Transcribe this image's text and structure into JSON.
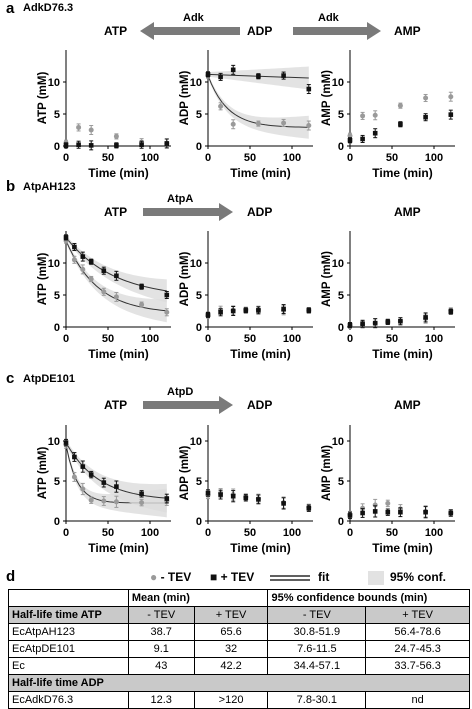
{
  "panels": [
    {
      "label": "a",
      "title": "AdkD76.3"
    },
    {
      "label": "b",
      "title": "AtpAH123"
    },
    {
      "label": "c",
      "title": "AtpDE101"
    },
    {
      "label": "d",
      "title": ""
    }
  ],
  "headers": {
    "a": {
      "atp": "ATP",
      "adp": "ADP",
      "amp": "AMP",
      "enzyme_left": "Adk",
      "enzyme_right": "Adk"
    },
    "b": {
      "atp": "ATP",
      "adp": "ADP",
      "amp": "AMP",
      "enzyme": "AtpA"
    },
    "c": {
      "atp": "ATP",
      "adp": "ADP",
      "amp": "AMP",
      "enzyme": "AtpD"
    }
  },
  "colors": {
    "minus_tev": "#9a9a9a",
    "plus_tev": "#111111",
    "conf_band": "#dcdcdc"
  },
  "legend": {
    "minus": "- TEV",
    "plus": "+ TEV",
    "fit": "fit",
    "conf": "95% conf."
  },
  "chart_data": [
    {
      "panel": "a",
      "type": "scatter",
      "title": "",
      "xlabel": "Time (min)",
      "ylabel": "ATP (mM)",
      "xlim": [
        0,
        125
      ],
      "ylim": [
        0,
        15
      ],
      "xticks": [
        0,
        50,
        100
      ],
      "yticks": [
        0,
        5,
        10
      ],
      "fit": false,
      "series": [
        {
          "name": "- TEV",
          "x": [
            0,
            15,
            30,
            60,
            90,
            120
          ],
          "y": [
            0.5,
            2.9,
            2.5,
            1.5,
            0.6,
            0.4
          ]
        },
        {
          "name": "+ TEV",
          "x": [
            0,
            15,
            30,
            60,
            90,
            120
          ],
          "y": [
            0.1,
            0.2,
            0.1,
            0.1,
            0.2,
            0.4
          ]
        }
      ]
    },
    {
      "panel": "a",
      "type": "scatter",
      "title": "",
      "xlabel": "Time (min)",
      "ylabel": "ADP (mM)",
      "xlim": [
        0,
        125
      ],
      "ylim": [
        0,
        15
      ],
      "xticks": [
        0,
        50,
        100
      ],
      "yticks": [
        0,
        5,
        10
      ],
      "fit": true,
      "series": [
        {
          "name": "- TEV",
          "x": [
            0,
            15,
            30,
            60,
            90,
            120
          ],
          "y": [
            11.0,
            6.2,
            3.4,
            3.5,
            3.6,
            3.2
          ]
        },
        {
          "name": "+ TEV",
          "x": [
            0,
            15,
            30,
            60,
            90,
            120
          ],
          "y": [
            11.2,
            10.8,
            11.9,
            10.9,
            11.0,
            8.9
          ]
        }
      ]
    },
    {
      "panel": "a",
      "type": "scatter",
      "title": "",
      "xlabel": "Time (min)",
      "ylabel": "AMP (mM)",
      "xlim": [
        0,
        125
      ],
      "ylim": [
        0,
        15
      ],
      "xticks": [
        0,
        50,
        100
      ],
      "yticks": [
        0,
        5,
        10
      ],
      "fit": false,
      "series": [
        {
          "name": "- TEV",
          "x": [
            0,
            15,
            30,
            60,
            90,
            120
          ],
          "y": [
            1.6,
            4.7,
            4.8,
            6.3,
            7.5,
            7.7
          ]
        },
        {
          "name": "+ TEV",
          "x": [
            0,
            15,
            30,
            60,
            90,
            120
          ],
          "y": [
            0.9,
            1.1,
            2.0,
            3.4,
            4.5,
            4.9
          ]
        }
      ]
    },
    {
      "panel": "b",
      "type": "scatter",
      "title": "",
      "xlabel": "Time (min)",
      "ylabel": "ATP (mM)",
      "xlim": [
        0,
        125
      ],
      "ylim": [
        0,
        15
      ],
      "xticks": [
        0,
        50,
        100
      ],
      "yticks": [
        0,
        5,
        10
      ],
      "fit": true,
      "series": [
        {
          "name": "- TEV",
          "x": [
            0,
            10,
            20,
            30,
            45,
            60,
            90,
            120
          ],
          "y": [
            13.5,
            10.5,
            9.0,
            7.5,
            5.5,
            4.7,
            3.5,
            2.3
          ]
        },
        {
          "name": "+ TEV",
          "x": [
            0,
            10,
            20,
            30,
            45,
            60,
            90,
            120
          ],
          "y": [
            14.0,
            12.5,
            11.0,
            10.2,
            8.8,
            8.0,
            6.3,
            5.0
          ]
        }
      ]
    },
    {
      "panel": "b",
      "type": "scatter",
      "title": "",
      "xlabel": "Time (min)",
      "ylabel": "ADP (mM)",
      "xlim": [
        0,
        125
      ],
      "ylim": [
        0,
        15
      ],
      "xticks": [
        0,
        50,
        100
      ],
      "yticks": [
        0,
        5,
        10
      ],
      "fit": false,
      "series": [
        {
          "name": "- TEV",
          "x": [
            0,
            15,
            30,
            45,
            60,
            90,
            120
          ],
          "y": [
            1.8,
            2.7,
            2.6,
            2.7,
            2.7,
            2.6,
            2.6
          ]
        },
        {
          "name": "+ TEV",
          "x": [
            0,
            15,
            30,
            45,
            60,
            90,
            120
          ],
          "y": [
            1.9,
            2.3,
            2.5,
            2.6,
            2.6,
            2.8,
            2.6
          ]
        }
      ]
    },
    {
      "panel": "b",
      "type": "scatter",
      "title": "",
      "xlabel": "Time (min)",
      "ylabel": "AMP (mM)",
      "xlim": [
        0,
        125
      ],
      "ylim": [
        0,
        15
      ],
      "xticks": [
        0,
        50,
        100
      ],
      "yticks": [
        0,
        5,
        10
      ],
      "fit": false,
      "series": [
        {
          "name": "- TEV",
          "x": [
            0,
            15,
            30,
            45,
            60,
            90,
            120
          ],
          "y": [
            0.2,
            0.4,
            0.6,
            0.8,
            0.9,
            1.3,
            2.6
          ]
        },
        {
          "name": "+ TEV",
          "x": [
            0,
            15,
            30,
            45,
            60,
            90,
            120
          ],
          "y": [
            0.3,
            0.5,
            0.6,
            0.8,
            0.9,
            1.5,
            2.4
          ]
        }
      ]
    },
    {
      "panel": "c",
      "type": "scatter",
      "title": "",
      "xlabel": "Time (min)",
      "ylabel": "ATP (mM)",
      "xlim": [
        0,
        125
      ],
      "ylim": [
        0,
        12
      ],
      "xticks": [
        0,
        50,
        100
      ],
      "yticks": [
        0,
        5,
        10
      ],
      "fit": true,
      "series": [
        {
          "name": "- TEV",
          "x": [
            0,
            10,
            20,
            30,
            45,
            60,
            90,
            120
          ],
          "y": [
            9.5,
            5.5,
            4.0,
            2.6,
            2.5,
            2.4,
            2.3,
            2.5
          ]
        },
        {
          "name": "+ TEV",
          "x": [
            0,
            10,
            20,
            30,
            45,
            60,
            90,
            120
          ],
          "y": [
            9.8,
            8.0,
            6.8,
            5.8,
            4.8,
            4.3,
            3.4,
            2.8
          ]
        }
      ]
    },
    {
      "panel": "c",
      "type": "scatter",
      "title": "",
      "xlabel": "Time (min)",
      "ylabel": "ADP (mM)",
      "xlim": [
        0,
        125
      ],
      "ylim": [
        0,
        12
      ],
      "xticks": [
        0,
        50,
        100
      ],
      "yticks": [
        0,
        5,
        10
      ],
      "fit": false,
      "series": [
        {
          "name": "- TEV",
          "x": [
            0,
            15,
            30,
            45,
            60,
            90,
            120
          ],
          "y": [
            3.2,
            3.5,
            3.3,
            3.0,
            2.8,
            2.3,
            1.7
          ]
        },
        {
          "name": "+ TEV",
          "x": [
            0,
            15,
            30,
            45,
            60,
            90,
            120
          ],
          "y": [
            3.5,
            3.3,
            3.1,
            2.9,
            2.7,
            2.2,
            1.6
          ]
        }
      ]
    },
    {
      "panel": "c",
      "type": "scatter",
      "title": "",
      "xlabel": "Time (min)",
      "ylabel": "AMP (mM)",
      "xlim": [
        0,
        125
      ],
      "ylim": [
        0,
        12
      ],
      "xticks": [
        0,
        50,
        100
      ],
      "yticks": [
        0,
        5,
        10
      ],
      "fit": false,
      "series": [
        {
          "name": "- TEV",
          "x": [
            0,
            15,
            30,
            45,
            60,
            90,
            120
          ],
          "y": [
            0.8,
            1.6,
            2.0,
            2.2,
            1.5,
            1.2,
            1.0
          ]
        },
        {
          "name": "+ TEV",
          "x": [
            0,
            15,
            30,
            45,
            60,
            90,
            120
          ],
          "y": [
            0.7,
            1.0,
            1.2,
            1.1,
            1.1,
            1.1,
            1.0
          ]
        }
      ]
    }
  ],
  "table": {
    "header": {
      "mean": "Mean (min)",
      "conf": "95% confidence bounds (min)"
    },
    "sections": [
      {
        "title": "Half-life time ATP",
        "cols": [
          "- TEV",
          "+ TEV",
          "- TEV",
          "+ TEV"
        ],
        "rows": [
          [
            "EcAtpAH123",
            "38.7",
            "65.6",
            "30.8-51.9",
            "56.4-78.6"
          ],
          [
            "EcAtpDE101",
            "9.1",
            "32",
            "7.6-11.5",
            "24.7-45.3"
          ],
          [
            "Ec",
            "43",
            "42.2",
            "34.4-57.1",
            "33.7-56.3"
          ]
        ]
      },
      {
        "title": "Half-life time ADP",
        "rows": [
          [
            "EcAdkD76.3",
            "12.3",
            ">120",
            "7.8-30.1",
            "nd"
          ]
        ]
      }
    ]
  }
}
